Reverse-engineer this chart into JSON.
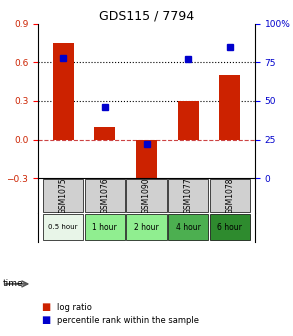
{
  "title": "GDS115 / 7794",
  "samples": [
    "GSM1075",
    "GSM1076",
    "GSM1090",
    "GSM1077",
    "GSM1078"
  ],
  "time_labels": [
    "0.5 hour",
    "1 hour",
    "2 hour",
    "4 hour",
    "6 hour"
  ],
  "time_colors": [
    "#e8f5e8",
    "#90ee90",
    "#90ee90",
    "#4caf50",
    "#2e8b2e"
  ],
  "log_ratio": [
    0.75,
    0.1,
    -0.35,
    0.3,
    0.5
  ],
  "percentile": [
    78,
    46,
    22,
    77,
    85
  ],
  "bar_color": "#cc2200",
  "dot_color": "#0000cc",
  "ylim_left": [
    -0.3,
    0.9
  ],
  "ylim_right": [
    0,
    100
  ],
  "yticks_left": [
    -0.3,
    0.0,
    0.3,
    0.6,
    0.9
  ],
  "yticks_right": [
    0,
    25,
    50,
    75,
    100
  ],
  "hline_y": [
    0.3,
    0.6
  ],
  "hline_y_right": [
    50,
    75
  ],
  "zero_line_y": 0.0,
  "background_color": "#ffffff",
  "plot_bg": "#ffffff"
}
